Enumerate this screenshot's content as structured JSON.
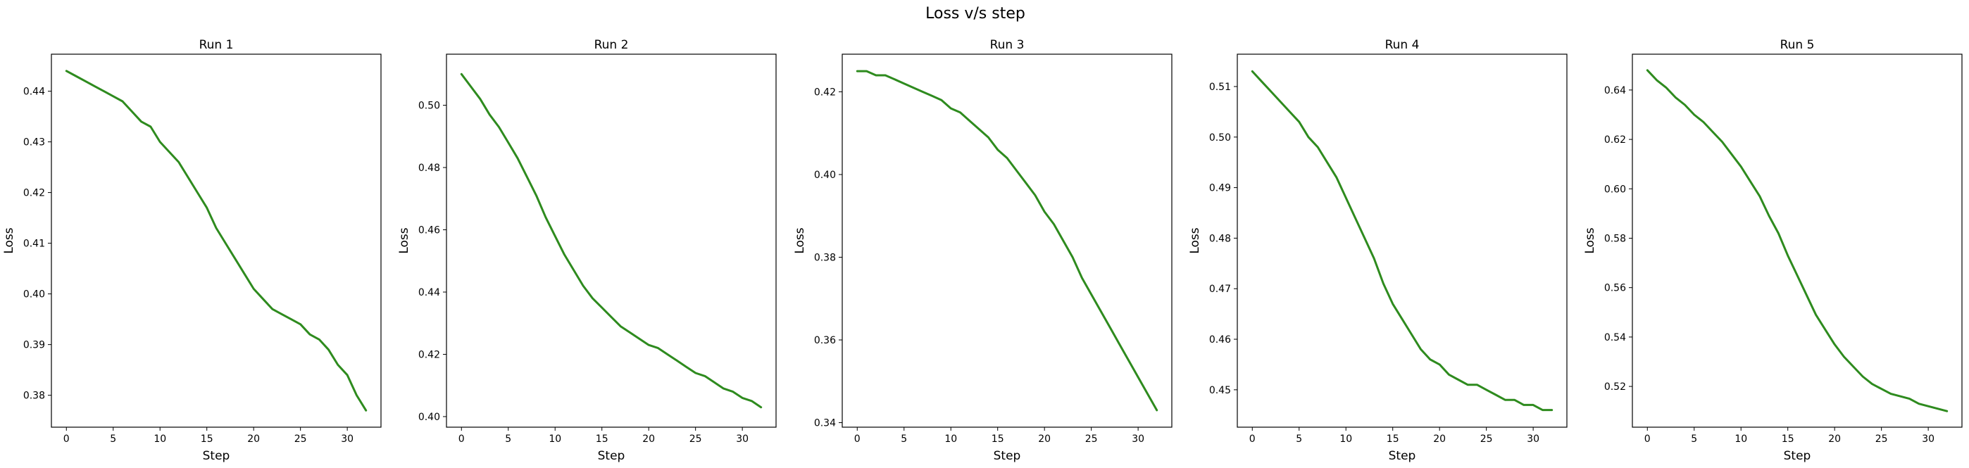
{
  "figure": {
    "title": "Loss v/s step"
  },
  "colors": {
    "line": "#2e8b1e"
  },
  "chart_data": [
    {
      "type": "line",
      "title": "Run 1",
      "xlabel": "Step",
      "ylabel": "Loss",
      "xlim": [
        -1.6,
        33.6
      ],
      "ylim": [
        0.3737,
        0.4473
      ],
      "xticks": [
        0,
        5,
        10,
        15,
        20,
        25,
        30
      ],
      "yticks": [
        0.38,
        0.39,
        0.4,
        0.41,
        0.42,
        0.43,
        0.44
      ],
      "ytick_labels": [
        "0.38",
        "0.39",
        "0.40",
        "0.41",
        "0.42",
        "0.43",
        "0.44"
      ],
      "grid": false,
      "series": [
        {
          "x": [
            0,
            1,
            2,
            3,
            4,
            5,
            6,
            7,
            8,
            9,
            10,
            11,
            12,
            13,
            14,
            15,
            16,
            17,
            18,
            19,
            20,
            21,
            22,
            23,
            24,
            25,
            26,
            27,
            28,
            29,
            30,
            31,
            32
          ],
          "values": [
            0.444,
            0.443,
            0.442,
            0.441,
            0.44,
            0.439,
            0.438,
            0.436,
            0.434,
            0.433,
            0.43,
            0.428,
            0.426,
            0.423,
            0.42,
            0.417,
            0.413,
            0.41,
            0.407,
            0.404,
            0.401,
            0.399,
            0.397,
            0.396,
            0.395,
            0.394,
            0.392,
            0.391,
            0.389,
            0.386,
            0.384,
            0.38,
            0.377
          ]
        }
      ]
    },
    {
      "type": "line",
      "title": "Run 2",
      "xlabel": "Step",
      "ylabel": "Loss",
      "xlim": [
        -1.6,
        33.6
      ],
      "ylim": [
        0.3966,
        0.5164
      ],
      "xticks": [
        0,
        5,
        10,
        15,
        20,
        25,
        30
      ],
      "yticks": [
        0.4,
        0.42,
        0.44,
        0.46,
        0.48,
        0.5
      ],
      "ytick_labels": [
        "0.40",
        "0.42",
        "0.44",
        "0.46",
        "0.48",
        "0.50"
      ],
      "grid": false,
      "series": [
        {
          "x": [
            0,
            1,
            2,
            3,
            4,
            5,
            6,
            7,
            8,
            9,
            10,
            11,
            12,
            13,
            14,
            15,
            16,
            17,
            18,
            19,
            20,
            21,
            22,
            23,
            24,
            25,
            26,
            27,
            28,
            29,
            30,
            31,
            32
          ],
          "values": [
            0.51,
            0.506,
            0.502,
            0.497,
            0.493,
            0.488,
            0.483,
            0.477,
            0.471,
            0.464,
            0.458,
            0.452,
            0.447,
            0.442,
            0.438,
            0.435,
            0.432,
            0.429,
            0.427,
            0.425,
            0.423,
            0.422,
            0.42,
            0.418,
            0.416,
            0.414,
            0.413,
            0.411,
            0.409,
            0.408,
            0.406,
            0.405,
            0.403
          ]
        }
      ]
    },
    {
      "type": "line",
      "title": "Run 3",
      "xlabel": "Step",
      "ylabel": "Loss",
      "xlim": [
        -1.6,
        33.6
      ],
      "ylim": [
        0.3389,
        0.4291
      ],
      "xticks": [
        0,
        5,
        10,
        15,
        20,
        25,
        30
      ],
      "yticks": [
        0.34,
        0.36,
        0.38,
        0.4,
        0.42
      ],
      "ytick_labels": [
        "0.34",
        "0.36",
        "0.38",
        "0.40",
        "0.42"
      ],
      "grid": false,
      "series": [
        {
          "x": [
            0,
            1,
            2,
            3,
            4,
            5,
            6,
            7,
            8,
            9,
            10,
            11,
            12,
            13,
            14,
            15,
            16,
            17,
            18,
            19,
            20,
            21,
            22,
            23,
            24,
            25,
            26,
            27,
            28,
            29,
            30,
            31,
            32
          ],
          "values": [
            0.425,
            0.425,
            0.424,
            0.424,
            0.423,
            0.422,
            0.421,
            0.42,
            0.419,
            0.418,
            0.416,
            0.415,
            0.413,
            0.411,
            0.409,
            0.406,
            0.404,
            0.401,
            0.398,
            0.395,
            0.391,
            0.388,
            0.384,
            0.38,
            0.375,
            0.371,
            0.367,
            0.363,
            0.359,
            0.355,
            0.351,
            0.347,
            0.343
          ]
        }
      ]
    },
    {
      "type": "line",
      "title": "Run 4",
      "xlabel": "Step",
      "ylabel": "Loss",
      "xlim": [
        -1.6,
        33.6
      ],
      "ylim": [
        0.4426,
        0.5164
      ],
      "xticks": [
        0,
        5,
        10,
        15,
        20,
        25,
        30
      ],
      "yticks": [
        0.45,
        0.46,
        0.47,
        0.48,
        0.49,
        0.5,
        0.51
      ],
      "ytick_labels": [
        "0.45",
        "0.46",
        "0.47",
        "0.48",
        "0.49",
        "0.50",
        "0.51"
      ],
      "grid": false,
      "series": [
        {
          "x": [
            0,
            1,
            2,
            3,
            4,
            5,
            6,
            7,
            8,
            9,
            10,
            11,
            12,
            13,
            14,
            15,
            16,
            17,
            18,
            19,
            20,
            21,
            22,
            23,
            24,
            25,
            26,
            27,
            28,
            29,
            30,
            31,
            32
          ],
          "values": [
            0.513,
            0.511,
            0.509,
            0.507,
            0.505,
            0.503,
            0.5,
            0.498,
            0.495,
            0.492,
            0.488,
            0.484,
            0.48,
            0.476,
            0.471,
            0.467,
            0.464,
            0.461,
            0.458,
            0.456,
            0.455,
            0.453,
            0.452,
            0.451,
            0.451,
            0.45,
            0.449,
            0.448,
            0.448,
            0.447,
            0.447,
            0.446,
            0.446
          ]
        }
      ]
    },
    {
      "type": "line",
      "title": "Run 5",
      "xlabel": "Step",
      "ylabel": "Loss",
      "xlim": [
        -1.6,
        33.6
      ],
      "ylim": [
        0.5035,
        0.6545
      ],
      "xticks": [
        0,
        5,
        10,
        15,
        20,
        25,
        30
      ],
      "yticks": [
        0.52,
        0.54,
        0.56,
        0.58,
        0.6,
        0.62,
        0.64
      ],
      "ytick_labels": [
        "0.52",
        "0.54",
        "0.56",
        "0.58",
        "0.60",
        "0.62",
        "0.64"
      ],
      "grid": false,
      "series": [
        {
          "x": [
            0,
            1,
            2,
            3,
            4,
            5,
            6,
            7,
            8,
            9,
            10,
            11,
            12,
            13,
            14,
            15,
            16,
            17,
            18,
            19,
            20,
            21,
            22,
            23,
            24,
            25,
            26,
            27,
            28,
            29,
            30,
            31,
            32
          ],
          "values": [
            0.648,
            0.644,
            0.641,
            0.637,
            0.634,
            0.63,
            0.627,
            0.623,
            0.619,
            0.614,
            0.609,
            0.603,
            0.597,
            0.589,
            0.582,
            0.573,
            0.565,
            0.557,
            0.549,
            0.543,
            0.537,
            0.532,
            0.528,
            0.524,
            0.521,
            0.519,
            0.517,
            0.516,
            0.515,
            0.513,
            0.512,
            0.511,
            0.51
          ]
        }
      ]
    }
  ]
}
